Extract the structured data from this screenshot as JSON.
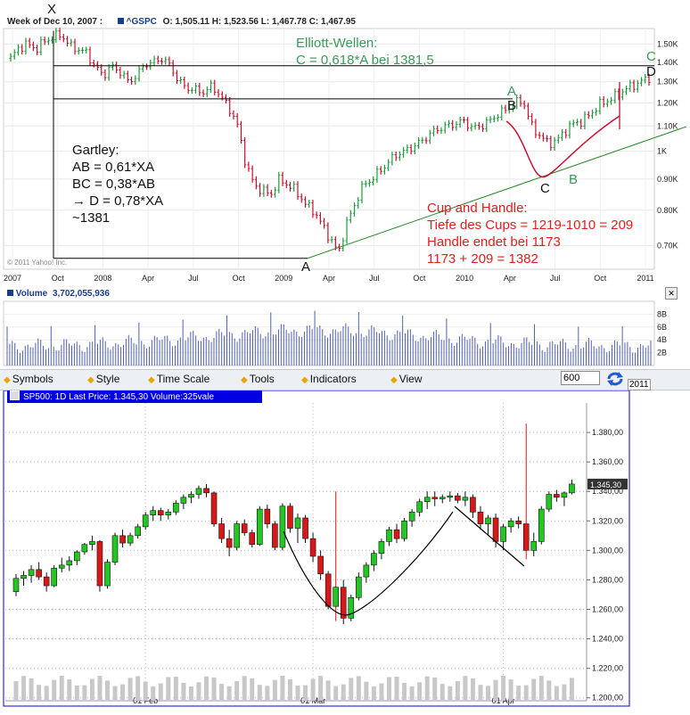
{
  "top_chart": {
    "header_week": "Week of Dec 10, 2007 :",
    "ticker": "^GSPC",
    "o_label": "O:",
    "open": "1,505.11",
    "h_label": "H:",
    "high": "1,523.56",
    "l_label": "L:",
    "low": "1,467.78",
    "c_label": "C:",
    "close": "1,467.95",
    "copyright": "© 2011 Yahoo! Inc."
  },
  "volume_panel": {
    "label": "Volume",
    "value": "3,702,055,936",
    "close_symbol": "✕"
  },
  "annotations": {
    "elliott_1": "Elliott-Wellen:",
    "elliott_2": "C = 0,618*A bei 1381,5",
    "gartley_1": "Gartley:",
    "gartley_2": "AB = 0,61*XA",
    "gartley_3": "BC = 0,38*AB",
    "gartley_4": "→ D = 0,78*XA",
    "gartley_5": "~1381",
    "cup_1": "Cup and Handle:",
    "cup_2": "Tiefe des Cups = 1219-1010 = 209",
    "cup_3": "Handle endet bei 1173",
    "cup_4": "1173 + 209 = 1382",
    "pt_X": "X",
    "pt_A": "A",
    "pt_A2": "A",
    "pt_B": "B",
    "pt_B2": "B",
    "pt_C": "C",
    "pt_C2": "C",
    "pt_D": "D"
  },
  "toolbar": {
    "symbols": "Symbols",
    "style": "Style",
    "time_scale": "Time Scale",
    "tools": "Tools",
    "indicators": "Indicators",
    "view": "View",
    "zoom_value": "600",
    "cut_label": "2011"
  },
  "bottom_chart": {
    "header": "SP500: 1D Last Price: 1.345,30 Volume:325vale",
    "last_price_tag": "1.345,30"
  },
  "colors": {
    "up": "#1e9b3c",
    "down": "#c8102e",
    "elliott": "#3a9a5a",
    "cup_text": "#e0201c",
    "trend": "#2a8a2a",
    "header_blue": "#0000e0"
  },
  "chart_data": [
    {
      "type": "candlestick",
      "title": "",
      "x_ticks": [
        "2007",
        "Oct",
        "2008",
        "Apr",
        "Jul",
        "Oct",
        "2009",
        "Apr",
        "Jul",
        "Oct",
        "2010",
        "Apr",
        "Jul",
        "Oct",
        "2011"
      ],
      "y_ticks": [
        "0.70K",
        "0.80K",
        "0.90K",
        "1K",
        "1.10K",
        "1.20K",
        "1.30K",
        "1.40K",
        "1.50K"
      ],
      "ylim": [
        640,
        1590
      ],
      "log_scale": true,
      "series": [
        {
          "values": [
            1420,
            1480,
            1500,
            1470,
            1515,
            1540,
            1555,
            1490,
            1470,
            1450,
            1380,
            1330,
            1380,
            1350,
            1300,
            1330,
            1390,
            1400,
            1420,
            1380,
            1300,
            1270,
            1260,
            1250,
            1280,
            1230,
            1180,
            1100,
            950,
            880,
            860,
            850,
            900,
            880,
            860,
            820,
            800,
            760,
            720,
            680,
            760,
            820,
            880,
            900,
            930,
            960,
            990,
            1000,
            1020,
            1040,
            1070,
            1090,
            1100,
            1110,
            1120,
            1090,
            1100,
            1120,
            1150,
            1170,
            1200,
            1210,
            1100,
            1060,
            1030,
            1040,
            1080,
            1110,
            1120,
            1150,
            1190,
            1210,
            1230,
            1260,
            1280,
            1300,
            1320
          ]
        }
      ],
      "annotation_levels": {
        "D_line": 1381,
        "B_line": 1219,
        "A_low": 667,
        "X_high": 1576
      }
    },
    {
      "type": "bar",
      "title": "Volume",
      "y_ticks": [
        "2B",
        "4B",
        "6B",
        "8B"
      ],
      "ylim": [
        0,
        10
      ]
    },
    {
      "type": "candlestick",
      "title": "SP500: 1D",
      "x_ticks": [
        "01 Feb",
        "01 Mar",
        "01 Apr"
      ],
      "y_ticks": [
        "1.200,00",
        "1.220,00",
        "1.240,00",
        "1.260,00",
        "1.280,00",
        "1.300,00",
        "1.320,00",
        "1.340,00",
        "1.360,00",
        "1.380,00"
      ],
      "ylim": [
        1198,
        1400
      ],
      "series": [
        {
          "ohlc": [
            [
              1272,
              1284,
              1269,
              1281
            ],
            [
              1281,
              1286,
              1276,
              1283
            ],
            [
              1283,
              1290,
              1278,
              1287
            ],
            [
              1287,
              1292,
              1280,
              1282
            ],
            [
              1282,
              1285,
              1272,
              1276
            ],
            [
              1276,
              1290,
              1275,
              1288
            ],
            [
              1288,
              1295,
              1285,
              1290
            ],
            [
              1290,
              1296,
              1286,
              1293
            ],
            [
              1293,
              1300,
              1290,
              1299
            ],
            [
              1299,
              1305,
              1297,
              1304
            ],
            [
              1304,
              1310,
              1300,
              1306
            ],
            [
              1306,
              1307,
              1272,
              1276
            ],
            [
              1276,
              1294,
              1274,
              1292
            ],
            [
              1292,
              1312,
              1290,
              1310
            ],
            [
              1310,
              1314,
              1302,
              1305
            ],
            [
              1305,
              1312,
              1303,
              1310
            ],
            [
              1310,
              1318,
              1308,
              1316
            ],
            [
              1316,
              1326,
              1314,
              1324
            ],
            [
              1324,
              1330,
              1320,
              1327
            ],
            [
              1327,
              1329,
              1320,
              1324
            ],
            [
              1324,
              1328,
              1321,
              1326
            ],
            [
              1326,
              1334,
              1324,
              1332
            ],
            [
              1332,
              1338,
              1328,
              1336
            ],
            [
              1336,
              1340,
              1332,
              1338
            ],
            [
              1338,
              1344,
              1335,
              1342
            ],
            [
              1342,
              1345,
              1336,
              1339
            ],
            [
              1339,
              1340,
              1316,
              1318
            ],
            [
              1318,
              1322,
              1305,
              1308
            ],
            [
              1308,
              1314,
              1296,
              1302
            ],
            [
              1302,
              1320,
              1300,
              1318
            ],
            [
              1318,
              1321,
              1310,
              1312
            ],
            [
              1312,
              1314,
              1302,
              1304
            ],
            [
              1304,
              1330,
              1303,
              1328
            ],
            [
              1328,
              1331,
              1315,
              1318
            ],
            [
              1318,
              1320,
              1300,
              1302
            ],
            [
              1302,
              1332,
              1300,
              1330
            ],
            [
              1330,
              1332,
              1312,
              1315
            ],
            [
              1315,
              1325,
              1305,
              1322
            ],
            [
              1322,
              1324,
              1305,
              1308
            ],
            [
              1308,
              1312,
              1292,
              1296
            ],
            [
              1296,
              1300,
              1280,
              1284
            ],
            [
              1284,
              1286,
              1260,
              1262
            ],
            [
              1262,
              1340,
              1252,
              1275
            ],
            [
              1275,
              1280,
              1250,
              1254
            ],
            [
              1254,
              1270,
              1252,
              1268
            ],
            [
              1268,
              1285,
              1266,
              1282
            ],
            [
              1282,
              1292,
              1278,
              1290
            ],
            [
              1290,
              1300,
              1286,
              1298
            ],
            [
              1298,
              1308,
              1294,
              1306
            ],
            [
              1306,
              1316,
              1303,
              1314
            ],
            [
              1314,
              1318,
              1305,
              1308
            ],
            [
              1308,
              1322,
              1306,
              1320
            ],
            [
              1320,
              1328,
              1316,
              1326
            ],
            [
              1326,
              1335,
              1323,
              1333
            ],
            [
              1333,
              1340,
              1328,
              1336
            ],
            [
              1336,
              1340,
              1330,
              1335
            ],
            [
              1335,
              1338,
              1332,
              1336
            ],
            [
              1336,
              1340,
              1333,
              1337
            ],
            [
              1337,
              1339,
              1332,
              1334
            ],
            [
              1334,
              1340,
              1330,
              1336
            ],
            [
              1336,
              1338,
              1322,
              1326
            ],
            [
              1326,
              1330,
              1314,
              1318
            ],
            [
              1318,
              1324,
              1310,
              1322
            ],
            [
              1322,
              1325,
              1302,
              1306
            ],
            [
              1306,
              1318,
              1300,
              1316
            ],
            [
              1316,
              1322,
              1312,
              1320
            ],
            [
              1320,
              1323,
              1315,
              1318
            ],
            [
              1318,
              1386,
              1294,
              1300
            ],
            [
              1300,
              1312,
              1296,
              1306
            ],
            [
              1306,
              1330,
              1304,
              1328
            ],
            [
              1328,
              1340,
              1326,
              1338
            ],
            [
              1338,
              1341,
              1333,
              1336
            ],
            [
              1336,
              1340,
              1330,
              1339
            ],
            [
              1339,
              1348,
              1338,
              1345
            ]
          ]
        }
      ]
    }
  ]
}
